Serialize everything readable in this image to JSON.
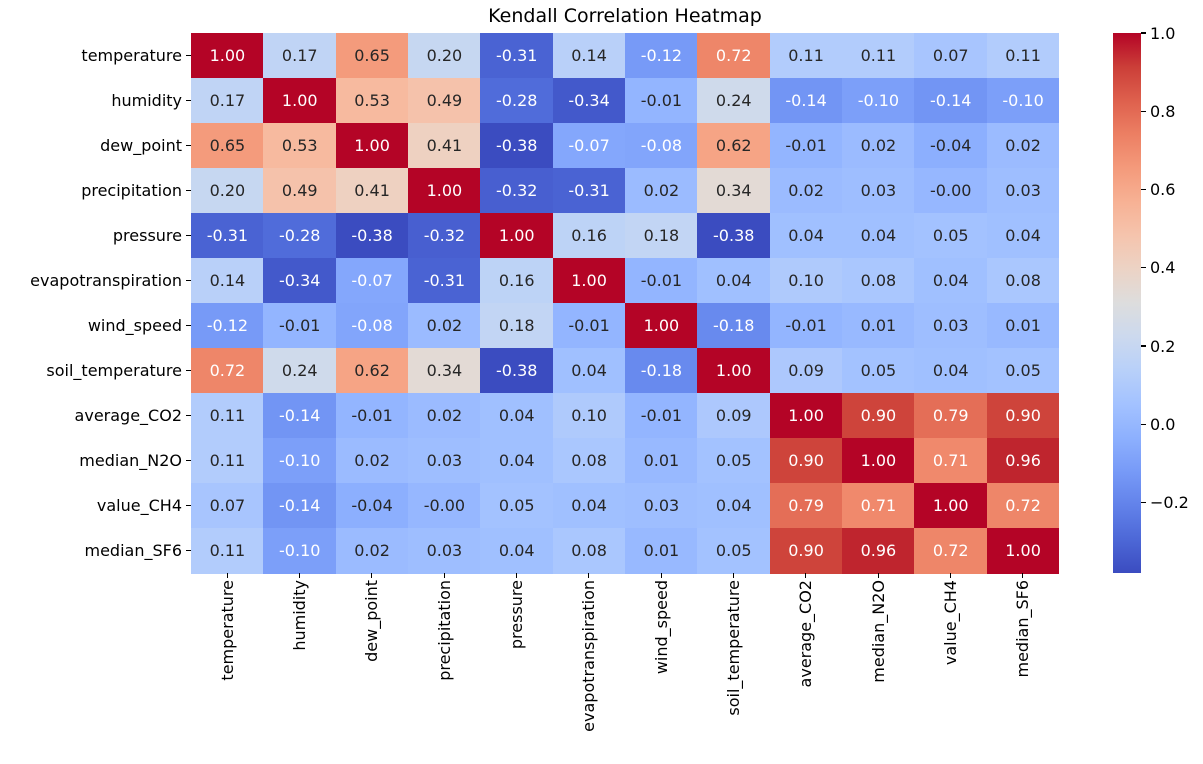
{
  "title": "Kendall Correlation Heatmap",
  "chart_data": {
    "type": "heatmap",
    "title": "Kendall Correlation Heatmap",
    "categories": [
      "temperature",
      "humidity",
      "dew_point",
      "precipitation",
      "pressure",
      "evapotranspiration",
      "wind_speed",
      "soil_temperature",
      "average_CO2",
      "median_N2O",
      "value_CH4",
      "median_SF6"
    ],
    "matrix": [
      [
        "1.00",
        "0.17",
        "0.65",
        "0.20",
        "-0.31",
        "0.14",
        "-0.12",
        "0.72",
        "0.11",
        "0.11",
        "0.07",
        "0.11"
      ],
      [
        "0.17",
        "1.00",
        "0.53",
        "0.49",
        "-0.28",
        "-0.34",
        "-0.01",
        "0.24",
        "-0.14",
        "-0.10",
        "-0.14",
        "-0.10"
      ],
      [
        "0.65",
        "0.53",
        "1.00",
        "0.41",
        "-0.38",
        "-0.07",
        "-0.08",
        "0.62",
        "-0.01",
        "0.02",
        "-0.04",
        "0.02"
      ],
      [
        "0.20",
        "0.49",
        "0.41",
        "1.00",
        "-0.32",
        "-0.31",
        "0.02",
        "0.34",
        "0.02",
        "0.03",
        "-0.00",
        "0.03"
      ],
      [
        "-0.31",
        "-0.28",
        "-0.38",
        "-0.32",
        "1.00",
        "0.16",
        "0.18",
        "-0.38",
        "0.04",
        "0.04",
        "0.05",
        "0.04"
      ],
      [
        "0.14",
        "-0.34",
        "-0.07",
        "-0.31",
        "0.16",
        "1.00",
        "-0.01",
        "0.04",
        "0.10",
        "0.08",
        "0.04",
        "0.08"
      ],
      [
        "-0.12",
        "-0.01",
        "-0.08",
        "0.02",
        "0.18",
        "-0.01",
        "1.00",
        "-0.18",
        "-0.01",
        "0.01",
        "0.03",
        "0.01"
      ],
      [
        "0.72",
        "0.24",
        "0.62",
        "0.34",
        "-0.38",
        "0.04",
        "-0.18",
        "1.00",
        "0.09",
        "0.05",
        "0.04",
        "0.05"
      ],
      [
        "0.11",
        "-0.14",
        "-0.01",
        "0.02",
        "0.04",
        "0.10",
        "-0.01",
        "0.09",
        "1.00",
        "0.90",
        "0.79",
        "0.90"
      ],
      [
        "0.11",
        "-0.10",
        "0.02",
        "0.03",
        "0.04",
        "0.08",
        "0.01",
        "0.05",
        "0.90",
        "1.00",
        "0.71",
        "0.96"
      ],
      [
        "0.07",
        "-0.14",
        "-0.04",
        "-0.00",
        "0.05",
        "0.04",
        "0.03",
        "0.04",
        "0.79",
        "0.71",
        "1.00",
        "0.72"
      ],
      [
        "0.11",
        "-0.10",
        "0.02",
        "0.03",
        "0.04",
        "0.08",
        "0.01",
        "0.05",
        "0.90",
        "0.96",
        "0.72",
        "1.00"
      ]
    ],
    "vmin": -0.38,
    "vmax": 1.0,
    "colormap": "coolwarm",
    "legend_position": "right-colorbar",
    "colorbar_tick_labels": [
      "1.0",
      "0.8",
      "0.6",
      "0.4",
      "0.2",
      "0.0",
      "−0.2"
    ],
    "colorbar_tick_values": [
      1.0,
      0.8,
      0.6,
      0.4,
      0.2,
      0.0,
      -0.2
    ],
    "colors": {
      "min": "#3b4cc0",
      "mid": "#dddddd",
      "max": "#b40426",
      "annot_dark": "#262626",
      "annot_light": "#ffffff"
    }
  }
}
